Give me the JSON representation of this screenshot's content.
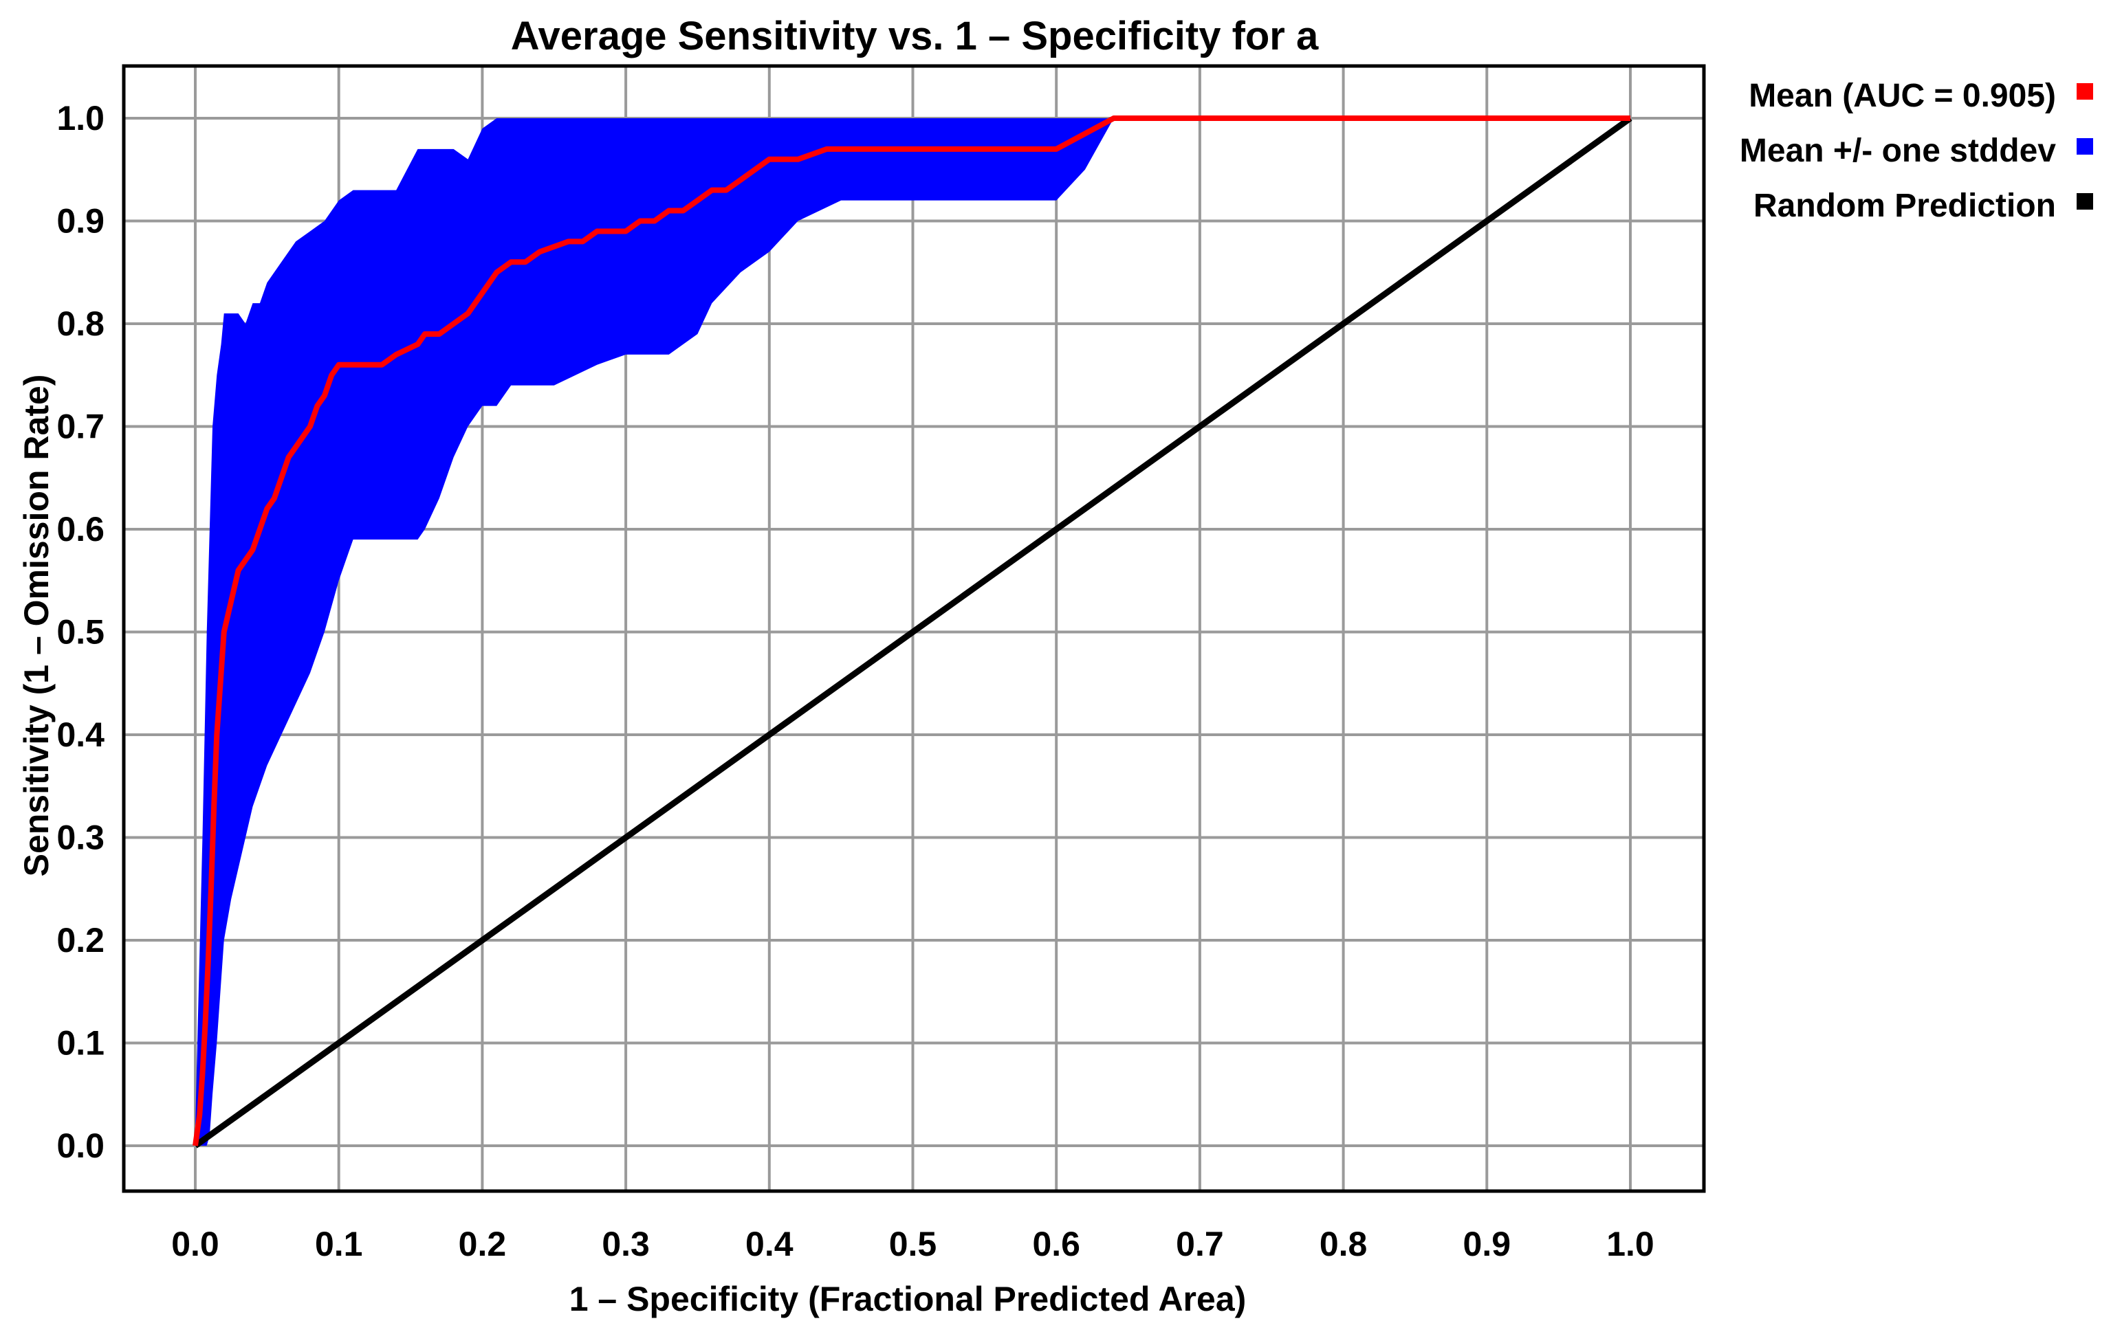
{
  "chart_data": {
    "type": "line",
    "title": "Average Sensitivity vs. 1 – Specificity for a",
    "xlabel": "1 – Specificity (Fractional Predicted Area)",
    "ylabel": "Sensitivity (1 – Omission Rate)",
    "xlim": [
      0.0,
      1.0
    ],
    "ylim": [
      0.0,
      1.0
    ],
    "x_ticks": [
      "0.0",
      "0.1",
      "0.2",
      "0.3",
      "0.4",
      "0.5",
      "0.6",
      "0.7",
      "0.8",
      "0.9",
      "1.0"
    ],
    "y_ticks": [
      "0.0",
      "0.1",
      "0.2",
      "0.3",
      "0.4",
      "0.5",
      "0.6",
      "0.7",
      "0.8",
      "0.9",
      "1.0"
    ],
    "grid": true,
    "legend_position": "right",
    "series": [
      {
        "name": "Mean (AUC = 0.905)",
        "color": "#ff0000",
        "kind": "line",
        "x": [
          0.0,
          0.003,
          0.005,
          0.007,
          0.009,
          0.011,
          0.013,
          0.015,
          0.018,
          0.02,
          0.025,
          0.03,
          0.035,
          0.04,
          0.045,
          0.05,
          0.055,
          0.06,
          0.065,
          0.07,
          0.075,
          0.08,
          0.085,
          0.09,
          0.095,
          0.1,
          0.11,
          0.12,
          0.13,
          0.14,
          0.155,
          0.16,
          0.17,
          0.18,
          0.19,
          0.2,
          0.21,
          0.22,
          0.23,
          0.24,
          0.26,
          0.27,
          0.28,
          0.29,
          0.3,
          0.31,
          0.32,
          0.33,
          0.34,
          0.35,
          0.36,
          0.37,
          0.38,
          0.39,
          0.4,
          0.42,
          0.44,
          0.45,
          0.5,
          0.55,
          0.6,
          0.62,
          0.64,
          0.7,
          0.8,
          0.9,
          1.0
        ],
        "y": [
          0.0,
          0.03,
          0.07,
          0.12,
          0.18,
          0.25,
          0.33,
          0.4,
          0.46,
          0.5,
          0.53,
          0.56,
          0.57,
          0.58,
          0.6,
          0.62,
          0.63,
          0.65,
          0.67,
          0.68,
          0.69,
          0.7,
          0.72,
          0.73,
          0.75,
          0.76,
          0.76,
          0.76,
          0.76,
          0.77,
          0.78,
          0.79,
          0.79,
          0.8,
          0.81,
          0.83,
          0.85,
          0.86,
          0.86,
          0.87,
          0.88,
          0.88,
          0.89,
          0.89,
          0.89,
          0.9,
          0.9,
          0.91,
          0.91,
          0.92,
          0.93,
          0.93,
          0.94,
          0.95,
          0.96,
          0.96,
          0.97,
          0.97,
          0.97,
          0.97,
          0.97,
          0.985,
          1.0,
          1.0,
          1.0,
          1.0,
          1.0
        ]
      },
      {
        "name": "Mean +/- one stddev",
        "color": "#0000ff",
        "kind": "band",
        "x": [
          0.0,
          0.005,
          0.008,
          0.01,
          0.012,
          0.015,
          0.018,
          0.02,
          0.025,
          0.03,
          0.035,
          0.04,
          0.045,
          0.05,
          0.06,
          0.07,
          0.08,
          0.09,
          0.1,
          0.11,
          0.12,
          0.13,
          0.14,
          0.155,
          0.16,
          0.17,
          0.18,
          0.19,
          0.2,
          0.21,
          0.22,
          0.25,
          0.28,
          0.3,
          0.33,
          0.35,
          0.36,
          0.38,
          0.4,
          0.42,
          0.45,
          0.5,
          0.55,
          0.6,
          0.62,
          0.64,
          1.0
        ],
        "upper": [
          0.02,
          0.3,
          0.5,
          0.6,
          0.7,
          0.75,
          0.78,
          0.81,
          0.81,
          0.81,
          0.8,
          0.82,
          0.82,
          0.84,
          0.86,
          0.88,
          0.89,
          0.9,
          0.92,
          0.93,
          0.93,
          0.93,
          0.93,
          0.97,
          0.97,
          0.97,
          0.97,
          0.96,
          0.99,
          1.0,
          1.0,
          1.0,
          1.0,
          1.0,
          1.0,
          1.0,
          1.0,
          1.0,
          1.0,
          1.0,
          1.0,
          1.0,
          1.0,
          1.0,
          1.0,
          1.0,
          1.0
        ],
        "lower": [
          0.0,
          0.0,
          0.0,
          0.01,
          0.05,
          0.1,
          0.16,
          0.2,
          0.24,
          0.27,
          0.3,
          0.33,
          0.35,
          0.37,
          0.4,
          0.43,
          0.46,
          0.5,
          0.55,
          0.59,
          0.59,
          0.59,
          0.59,
          0.59,
          0.6,
          0.63,
          0.67,
          0.7,
          0.72,
          0.72,
          0.74,
          0.74,
          0.76,
          0.77,
          0.77,
          0.79,
          0.82,
          0.85,
          0.87,
          0.9,
          0.92,
          0.92,
          0.92,
          0.92,
          0.95,
          1.0,
          1.0
        ]
      },
      {
        "name": "Random Prediction",
        "color": "#000000",
        "kind": "line",
        "x": [
          0.0,
          1.0
        ],
        "y": [
          0.0,
          1.0
        ]
      }
    ]
  }
}
